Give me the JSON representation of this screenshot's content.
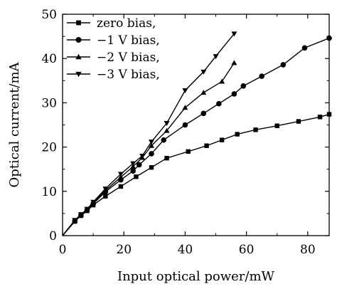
{
  "chart_data": {
    "type": "line",
    "title": "",
    "xlabel": "Input optical power/mW",
    "ylabel": "Optical current/mA",
    "xlim": [
      0,
      87
    ],
    "ylim": [
      0,
      50
    ],
    "xticks": [
      0,
      20,
      40,
      60,
      80
    ],
    "yticks": [
      0,
      10,
      20,
      30,
      40,
      50
    ],
    "xtick_labels": [
      "0",
      "20",
      "40",
      "60",
      "80"
    ],
    "ytick_labels": [
      "0",
      "10",
      "20",
      "30",
      "40",
      "50"
    ],
    "grid": false,
    "legend_position": "top-left",
    "series": [
      {
        "name": "zero bias,",
        "marker": "square",
        "x": [
          0,
          4,
          6,
          8,
          10,
          14,
          19,
          24,
          29,
          34,
          41,
          47,
          52,
          57,
          63,
          70,
          77,
          84,
          87
        ],
        "y": [
          0,
          3.2,
          4.5,
          5.6,
          6.9,
          8.9,
          11.1,
          13.3,
          15.4,
          17.5,
          19.0,
          20.3,
          21.6,
          22.9,
          23.9,
          24.8,
          25.8,
          26.8,
          27.4
        ]
      },
      {
        "name": "−1 V bias,",
        "marker": "circle",
        "x": [
          0,
          4,
          6,
          8,
          10,
          14,
          19,
          23,
          25,
          29,
          33,
          40,
          46,
          51,
          56,
          59,
          65,
          72,
          79,
          87
        ],
        "y": [
          0,
          3.3,
          4.6,
          5.8,
          7.2,
          9.9,
          12.6,
          14.6,
          16.0,
          18.5,
          21.6,
          25.0,
          27.6,
          29.8,
          32.0,
          33.8,
          36.0,
          38.6,
          42.4,
          44.6
        ]
      },
      {
        "name": "−2 V bias,",
        "marker": "triangle-up",
        "x": [
          0,
          4,
          6,
          8,
          10,
          14,
          19,
          23,
          26,
          29,
          34,
          40,
          46,
          52,
          56
        ],
        "y": [
          0,
          3.4,
          4.7,
          5.9,
          7.4,
          10.2,
          13.2,
          15.6,
          17.6,
          20.3,
          23.7,
          28.9,
          32.3,
          34.8,
          39.0
        ]
      },
      {
        "name": "−3 V bias,",
        "marker": "triangle-down",
        "x": [
          0,
          4,
          6,
          8,
          10,
          14,
          19,
          23,
          26,
          29,
          34,
          40,
          46,
          50,
          56
        ],
        "y": [
          0,
          3.5,
          4.8,
          6.0,
          7.6,
          10.6,
          13.9,
          16.3,
          18.0,
          21.2,
          25.4,
          32.8,
          37.0,
          40.5,
          45.6
        ]
      }
    ]
  }
}
